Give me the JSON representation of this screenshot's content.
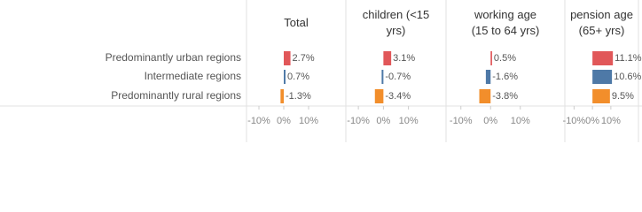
{
  "chart_data": {
    "type": "bar",
    "categories": [
      "Predominantly urban regions",
      "Intermediate regions",
      "Predominantly rural regions"
    ],
    "colors": [
      "#e15759",
      "#4e79a7",
      "#f28e2b"
    ],
    "panels": [
      {
        "title": "Total",
        "values": [
          2.7,
          0.7,
          -1.3
        ],
        "value_labels": [
          "2.7%",
          "0.7%",
          "-1.3%"
        ]
      },
      {
        "title": "children (<15 yrs)",
        "values": [
          3.1,
          -0.7,
          -3.4
        ],
        "value_labels": [
          "3.1%",
          "-0.7%",
          "-3.4%"
        ]
      },
      {
        "title": "working age (15 to 64 yrs)",
        "values": [
          0.5,
          -1.6,
          -3.8
        ],
        "value_labels": [
          "0.5%",
          "-1.6%",
          "-3.8%"
        ]
      },
      {
        "title": "pension age (65+ yrs)",
        "values": [
          11.1,
          10.6,
          9.5
        ],
        "value_labels": [
          "11.1%",
          "10.6%",
          "9.5%"
        ]
      }
    ],
    "xlim": [
      -15,
      25
    ],
    "xticks": [
      {
        "value": -10,
        "label": "-10%"
      },
      {
        "value": 0,
        "label": "0%"
      },
      {
        "value": 10,
        "label": "10%"
      }
    ],
    "grid": false
  }
}
